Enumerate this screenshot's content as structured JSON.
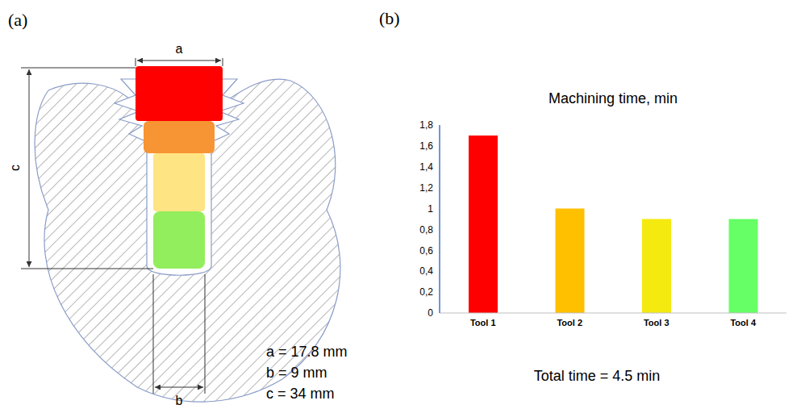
{
  "diagram": {
    "panel_label": "(a)",
    "dimension_labels": [
      "a",
      "b",
      "c"
    ],
    "dimensions": [
      "a = 17.8 mm",
      "b = 9 mm",
      "c = 34 mm"
    ]
  },
  "chart_data": {
    "panel_label": "(b)",
    "type": "bar",
    "title": "Machining time, min",
    "categories": [
      "Tool 1",
      "Tool 2",
      "Tool 3",
      "Tool 4"
    ],
    "values": [
      1.7,
      1,
      0.9,
      0.9
    ],
    "colors": [
      "#ff0000",
      "#ffc000",
      "#f5ea10",
      "#66ff66"
    ],
    "ylim": [
      0,
      1.8
    ],
    "yticks": [
      0,
      {
        "value": 0.2,
        "label": "0,2"
      },
      {
        "value": 0.4,
        "label": "0,4"
      },
      {
        "value": 0.6,
        "label": "0,6"
      },
      {
        "value": 0.8,
        "label": "0,8"
      },
      1,
      {
        "value": 1.2,
        "label": "1,2"
      },
      {
        "value": 1.4,
        "label": "1,4"
      },
      {
        "value": 1.6,
        "label": "1,6"
      },
      {
        "value": 1.8,
        "label": "1,8"
      }
    ],
    "grid": false,
    "annotations": [
      "Total time = 4.5 min"
    ]
  }
}
